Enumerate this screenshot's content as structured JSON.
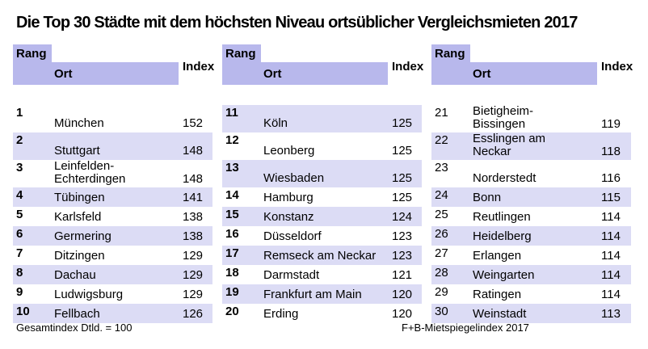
{
  "title": "Die Top 30 Städte mit dem höchsten Niveau ortsüblicher Vergleichsmieten 2017",
  "column_headers": {
    "rang": "Rang",
    "ort": "Ort",
    "index": "Index"
  },
  "footer": {
    "left": "Gesamtindex Dtld. = 100",
    "right": "F+B-Mietspiegelindex 2017"
  },
  "colors": {
    "header_fill": "#b8b8ec",
    "row_stripe": "#dcdcf5",
    "text": "#000000",
    "background": "#ffffff"
  },
  "groups": [
    {
      "rows": [
        {
          "rank": "1",
          "city": "München",
          "index": "152"
        },
        {
          "rank": "2",
          "city": "Stuttgart",
          "index": "148"
        },
        {
          "rank": "3",
          "city": "Leinfelden-\nEchterdingen",
          "index": "148"
        },
        {
          "rank": "4",
          "city": "Tübingen",
          "index": "141"
        },
        {
          "rank": "5",
          "city": "Karlsfeld",
          "index": "138"
        },
        {
          "rank": "6",
          "city": "Germering",
          "index": "138"
        },
        {
          "rank": "7",
          "city": "Ditzingen",
          "index": "129"
        },
        {
          "rank": "8",
          "city": "Dachau",
          "index": "129"
        },
        {
          "rank": "9",
          "city": "Ludwigsburg",
          "index": "129"
        },
        {
          "rank": "10",
          "city": "Fellbach",
          "index": "126"
        }
      ]
    },
    {
      "rows": [
        {
          "rank": "11",
          "city": "Köln",
          "index": "125"
        },
        {
          "rank": "12",
          "city": "Leonberg",
          "index": "125"
        },
        {
          "rank": "13",
          "city": "Wiesbaden",
          "index": "125"
        },
        {
          "rank": "14",
          "city": "Hamburg",
          "index": "125"
        },
        {
          "rank": "15",
          "city": "Konstanz",
          "index": "124"
        },
        {
          "rank": "16",
          "city": "Düsseldorf",
          "index": "123"
        },
        {
          "rank": "17",
          "city": "Remseck am Neckar",
          "index": "123"
        },
        {
          "rank": "18",
          "city": "Darmstadt",
          "index": "121"
        },
        {
          "rank": "19",
          "city": "Frankfurt am Main",
          "index": "120"
        },
        {
          "rank": "20",
          "city": "Erding",
          "index": "120"
        }
      ]
    },
    {
      "rows": [
        {
          "rank": "21",
          "city": "Bietigheim-\nBissingen",
          "index": "119"
        },
        {
          "rank": "22",
          "city": "Esslingen am\nNeckar",
          "index": "118"
        },
        {
          "rank": "23",
          "city": "Norderstedt",
          "index": "116"
        },
        {
          "rank": "24",
          "city": "Bonn",
          "index": "115"
        },
        {
          "rank": "25",
          "city": "Reutlingen",
          "index": "114"
        },
        {
          "rank": "26",
          "city": "Heidelberg",
          "index": "114"
        },
        {
          "rank": "27",
          "city": "Erlangen",
          "index": "114"
        },
        {
          "rank": "28",
          "city": "Weingarten",
          "index": "114"
        },
        {
          "rank": "29",
          "city": "Ratingen",
          "index": "114"
        },
        {
          "rank": "30",
          "city": "Weinstadt",
          "index": "113"
        }
      ]
    }
  ],
  "chart_data": {
    "type": "table",
    "title": "Die Top 30 Städte mit dem höchsten Niveau ortsüblicher Vergleichsmieten 2017",
    "columns": [
      "Rang",
      "Ort",
      "Index"
    ],
    "rows": [
      [
        1,
        "München",
        152
      ],
      [
        2,
        "Stuttgart",
        148
      ],
      [
        3,
        "Leinfelden-Echterdingen",
        148
      ],
      [
        4,
        "Tübingen",
        141
      ],
      [
        5,
        "Karlsfeld",
        138
      ],
      [
        6,
        "Germering",
        138
      ],
      [
        7,
        "Ditzingen",
        129
      ],
      [
        8,
        "Dachau",
        129
      ],
      [
        9,
        "Ludwigsburg",
        129
      ],
      [
        10,
        "Fellbach",
        126
      ],
      [
        11,
        "Köln",
        125
      ],
      [
        12,
        "Leonberg",
        125
      ],
      [
        13,
        "Wiesbaden",
        125
      ],
      [
        14,
        "Hamburg",
        125
      ],
      [
        15,
        "Konstanz",
        124
      ],
      [
        16,
        "Düsseldorf",
        123
      ],
      [
        17,
        "Remseck am Neckar",
        123
      ],
      [
        18,
        "Darmstadt",
        121
      ],
      [
        19,
        "Frankfurt am Main",
        120
      ],
      [
        20,
        "Erding",
        120
      ],
      [
        21,
        "Bietigheim-Bissingen",
        119
      ],
      [
        22,
        "Esslingen am Neckar",
        118
      ],
      [
        23,
        "Norderstedt",
        116
      ],
      [
        24,
        "Bonn",
        115
      ],
      [
        25,
        "Reutlingen",
        114
      ],
      [
        26,
        "Heidelberg",
        114
      ],
      [
        27,
        "Erlangen",
        114
      ],
      [
        28,
        "Weingarten",
        114
      ],
      [
        29,
        "Ratingen",
        114
      ],
      [
        30,
        "Weinstadt",
        113
      ]
    ],
    "notes": [
      "Gesamtindex Dtld. = 100",
      "F+B-Mietspiegelindex 2017"
    ],
    "layout": {
      "groups_of_ten": 3,
      "index_base": "Gesamtindex Deutschland = 100"
    }
  }
}
